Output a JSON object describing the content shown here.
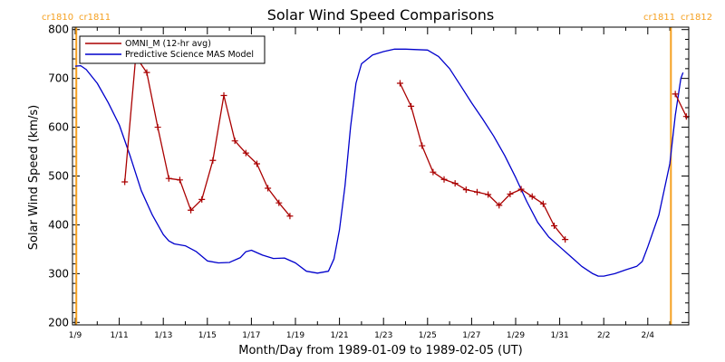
{
  "chart_data": {
    "type": "line",
    "title": "Solar Wind Speed Comparisons",
    "xlabel": "Month/Day from 1989-01-09 to 1989-02-05 (UT)",
    "ylabel": "Solar Wind Speed (km/s)",
    "xlim_days": [
      0,
      27.6
    ],
    "ylim": [
      195,
      805
    ],
    "y_ticks": [
      200,
      300,
      400,
      500,
      600,
      700,
      800
    ],
    "x_ticks": [
      {
        "day": 0,
        "label": "1/9"
      },
      {
        "day": 2,
        "label": "1/11"
      },
      {
        "day": 4,
        "label": "1/13"
      },
      {
        "day": 6,
        "label": "1/15"
      },
      {
        "day": 8,
        "label": "1/17"
      },
      {
        "day": 10,
        "label": "1/19"
      },
      {
        "day": 12,
        "label": "1/21"
      },
      {
        "day": 14,
        "label": "1/23"
      },
      {
        "day": 16,
        "label": "1/25"
      },
      {
        "day": 18,
        "label": "1/27"
      },
      {
        "day": 20,
        "label": "1/29"
      },
      {
        "day": 22,
        "label": "1/31"
      },
      {
        "day": 24,
        "label": "2/2"
      },
      {
        "day": 26,
        "label": "2/4"
      }
    ],
    "carrington_markers": [
      {
        "day": 0.05,
        "left_label": "cr1810",
        "right_label": "cr1811",
        "label_side": "start"
      },
      {
        "day": 27.05,
        "left_label": "cr1811",
        "right_label": "cr1812",
        "label_side": "end"
      }
    ],
    "marker_color": "#f5a020",
    "grid": false,
    "legend_position": "top-left",
    "series": [
      {
        "name": "OMNI_M (12-hr avg)",
        "color": "#aa0000",
        "marker": "+",
        "segments": [
          [
            [
              2.25,
              488
            ],
            [
              2.75,
              745
            ],
            [
              3.25,
              712
            ],
            [
              3.75,
              600
            ],
            [
              4.25,
              495
            ],
            [
              4.75,
              492
            ],
            [
              5.25,
              430
            ],
            [
              5.75,
              452
            ],
            [
              6.25,
              532
            ],
            [
              6.75,
              665
            ],
            [
              7.25,
              572
            ],
            [
              7.75,
              547
            ],
            [
              8.25,
              525
            ],
            [
              8.75,
              475
            ],
            [
              9.25,
              445
            ],
            [
              9.75,
              418
            ]
          ],
          [
            [
              14.75,
              690
            ],
            [
              15.25,
              643
            ],
            [
              15.75,
              562
            ],
            [
              16.25,
              508
            ],
            [
              16.75,
              493
            ],
            [
              17.25,
              485
            ],
            [
              17.75,
              472
            ],
            [
              18.25,
              467
            ],
            [
              18.75,
              462
            ],
            [
              19.25,
              440
            ],
            [
              19.75,
              463
            ],
            [
              20.25,
              473
            ],
            [
              20.75,
              458
            ],
            [
              21.25,
              443
            ],
            [
              21.75,
              398
            ],
            [
              22.25,
              370
            ]
          ],
          [
            [
              27.25,
              668
            ],
            [
              27.75,
              622
            ]
          ]
        ]
      },
      {
        "name": "Predictive Science MAS Model",
        "color": "#0000cc",
        "marker": "none",
        "segments": [
          [
            [
              0,
              725
            ],
            [
              0.25,
              726
            ],
            [
              0.5,
              718
            ],
            [
              1,
              690
            ],
            [
              1.5,
              650
            ],
            [
              2,
              605
            ],
            [
              2.5,
              540
            ],
            [
              3,
              470
            ],
            [
              3.5,
              420
            ],
            [
              4,
              380
            ],
            [
              4.25,
              367
            ],
            [
              4.5,
              361
            ],
            [
              5,
              357
            ],
            [
              5.5,
              345
            ],
            [
              6,
              326
            ],
            [
              6.5,
              322
            ],
            [
              7,
              323
            ],
            [
              7.5,
              333
            ],
            [
              7.75,
              345
            ],
            [
              8,
              348
            ],
            [
              8.5,
              338
            ],
            [
              9,
              331
            ],
            [
              9.5,
              332
            ],
            [
              10,
              322
            ],
            [
              10.5,
              305
            ],
            [
              11,
              301
            ],
            [
              11.5,
              305
            ],
            [
              11.75,
              330
            ],
            [
              12,
              390
            ],
            [
              12.25,
              480
            ],
            [
              12.5,
              600
            ],
            [
              12.75,
              690
            ],
            [
              13,
              730
            ],
            [
              13.5,
              748
            ],
            [
              14,
              755
            ],
            [
              14.5,
              760
            ],
            [
              15,
              760
            ],
            [
              16,
              758
            ],
            [
              16.5,
              745
            ],
            [
              17,
              720
            ],
            [
              17.5,
              685
            ],
            [
              18,
              650
            ],
            [
              18.5,
              617
            ],
            [
              19,
              582
            ],
            [
              19.5,
              542
            ],
            [
              20,
              497
            ],
            [
              20.5,
              448
            ],
            [
              21,
              405
            ],
            [
              21.5,
              375
            ],
            [
              22,
              355
            ],
            [
              22.5,
              335
            ],
            [
              23,
              315
            ],
            [
              23.5,
              300
            ],
            [
              23.75,
              295
            ],
            [
              24,
              295
            ],
            [
              24.5,
              300
            ],
            [
              25,
              308
            ],
            [
              25.5,
              315
            ],
            [
              25.75,
              325
            ],
            [
              26,
              355
            ],
            [
              26.5,
              420
            ],
            [
              27,
              525
            ],
            [
              27.25,
              625
            ],
            [
              27.5,
              700
            ],
            [
              27.6,
              712
            ]
          ]
        ]
      }
    ]
  }
}
